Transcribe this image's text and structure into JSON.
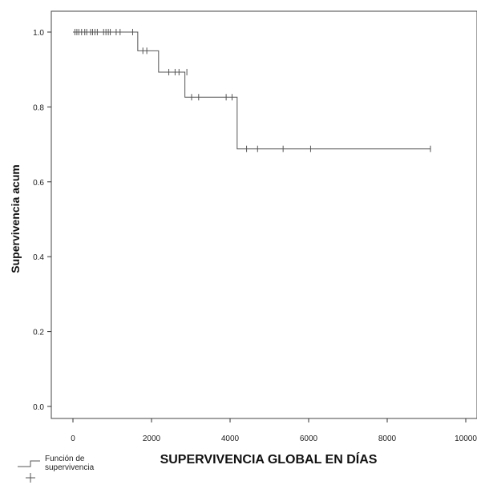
{
  "chart_data": {
    "type": "line",
    "step": true,
    "title": "",
    "xlabel": "SUPERVIVENCIA GLOBAL EN DÍAS",
    "ylabel": "Supervivencia acum",
    "xlim": [
      0,
      10000
    ],
    "ylim": [
      0.0,
      1.0
    ],
    "x_ticks": [
      0,
      2000,
      4000,
      6000,
      8000,
      10000
    ],
    "x_tick_labels": [
      "0",
      "2000",
      "4000",
      "6000",
      "8000",
      "10000"
    ],
    "y_ticks": [
      0.0,
      0.2,
      0.4,
      0.6,
      0.8,
      1.0
    ],
    "y_tick_labels": [
      "0.0",
      "0.2",
      "0.4",
      "0.6",
      "0.8",
      "1.0"
    ],
    "grid": false,
    "legend_position": "bottom-left",
    "legend": [
      {
        "label": "Función de supervivencia",
        "symbol": "step-line"
      },
      {
        "label": "",
        "symbol": "plus"
      }
    ],
    "series": [
      {
        "name": "Función de supervivencia",
        "color": "#555555",
        "x": [
          0,
          1650,
          2180,
          2850,
          4180,
          9100
        ],
        "y": [
          1.0,
          0.95,
          0.893,
          0.826,
          0.688,
          0.688
        ]
      }
    ],
    "censored": {
      "x": [
        50,
        100,
        150,
        220,
        300,
        350,
        450,
        500,
        560,
        620,
        780,
        840,
        900,
        950,
        1100,
        1200,
        1520,
        1780,
        1880,
        2440,
        2600,
        2700,
        2900,
        3020,
        3200,
        3900,
        4050,
        4420,
        4700,
        5350,
        6050,
        9100
      ],
      "y": [
        1.0,
        1.0,
        1.0,
        1.0,
        1.0,
        1.0,
        1.0,
        1.0,
        1.0,
        1.0,
        1.0,
        1.0,
        1.0,
        1.0,
        1.0,
        1.0,
        1.0,
        0.95,
        0.95,
        0.893,
        0.893,
        0.893,
        0.893,
        0.826,
        0.826,
        0.826,
        0.826,
        0.688,
        0.688,
        0.688,
        0.688,
        0.688
      ]
    }
  },
  "colors": {
    "curve": "#555555",
    "axis": "#333333",
    "frame": "#444444"
  }
}
